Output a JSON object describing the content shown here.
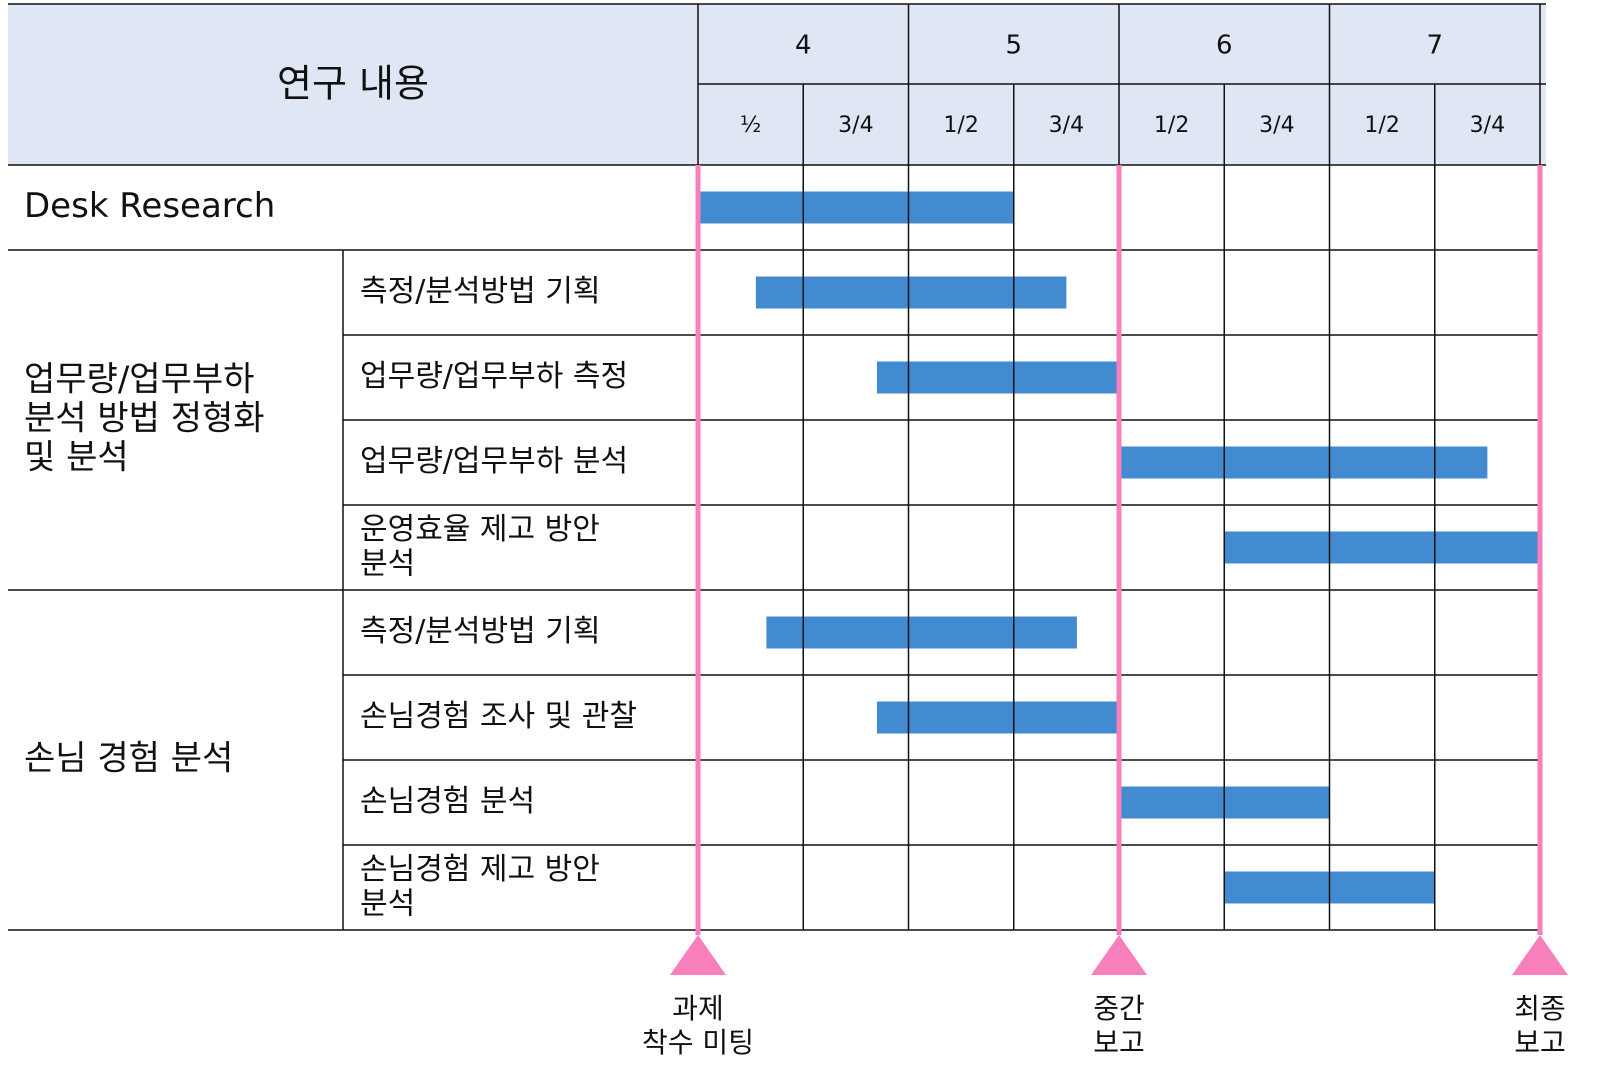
{
  "header": {
    "title": "연구 내용",
    "months": [
      "4",
      "5",
      "6",
      "7"
    ],
    "halves": [
      "½",
      "3/4",
      "1/2",
      "3/4",
      "1/2",
      "3/4",
      "1/2",
      "3/4"
    ]
  },
  "range": [
    0,
    8
  ],
  "groups": [
    {
      "label": [
        "Desk Research"
      ],
      "tasks": [
        {
          "start": 0,
          "end": 3
        }
      ]
    },
    {
      "label": [
        "업무량/업무부하",
        "분석 방법 정형화",
        "및 분석"
      ],
      "tasks": [
        {
          "label": [
            "측정/분석방법 기획"
          ],
          "start": 0.55,
          "end": 3.5
        },
        {
          "label": [
            "업무량/업무부하 측정"
          ],
          "start": 1.7,
          "end": 4
        },
        {
          "label": [
            "업무량/업무부하 분석"
          ],
          "start": 4,
          "end": 7.5
        },
        {
          "label": [
            "운영효율 제고 방안",
            "분석"
          ],
          "start": 5,
          "end": 8
        }
      ]
    },
    {
      "label": [
        "손님 경험 분석"
      ],
      "tasks": [
        {
          "label": [
            "측정/분석방법 기획"
          ],
          "start": 0.65,
          "end": 3.6
        },
        {
          "label": [
            "손님경험 조사 및 관찰"
          ],
          "start": 1.7,
          "end": 4
        },
        {
          "label": [
            "손님경험 분석"
          ],
          "start": 4,
          "end": 6
        },
        {
          "label": [
            "손님경험 제고 방안",
            "분석"
          ],
          "start": 5,
          "end": 7
        }
      ]
    }
  ],
  "milestones": [
    {
      "at": 0,
      "label": [
        "과제",
        "착수 미팅"
      ]
    },
    {
      "at": 4,
      "label": [
        "중간",
        "보고"
      ]
    },
    {
      "at": 8,
      "label": [
        "최종",
        "보고"
      ]
    }
  ]
}
